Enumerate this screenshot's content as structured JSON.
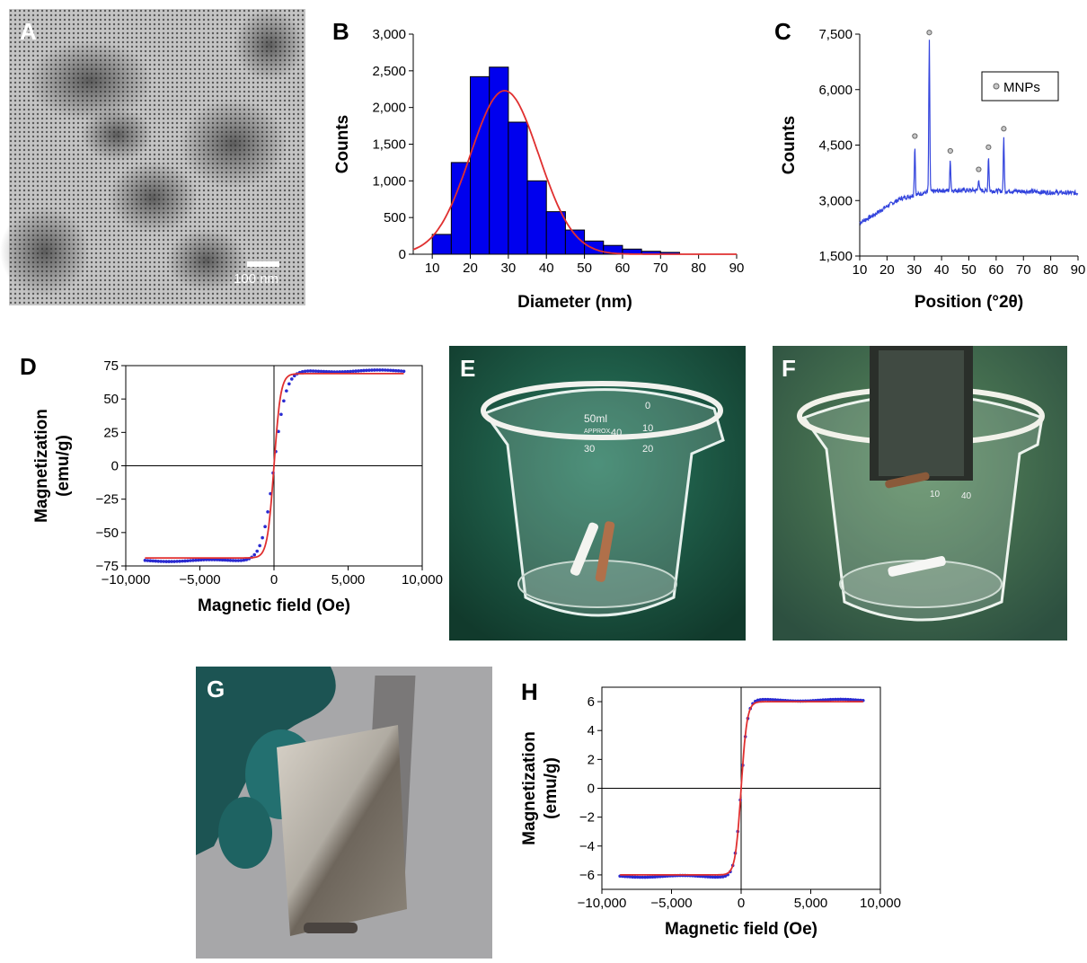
{
  "panels": {
    "a": {
      "letter": "A",
      "scalebar": "100 nm"
    },
    "b": {
      "letter": "B"
    },
    "c": {
      "letter": "C"
    },
    "d": {
      "letter": "D"
    },
    "e": {
      "letter": "E",
      "beaker_marks": [
        "50ml",
        "APPROX.",
        "0",
        "10",
        "20",
        "30",
        "40"
      ]
    },
    "f": {
      "letter": "F",
      "beaker_marks": [
        "10",
        "40"
      ]
    },
    "g": {
      "letter": "G"
    },
    "h": {
      "letter": "H"
    }
  },
  "colors": {
    "bars": "#0000ee",
    "fit": "#e03030",
    "data": "#2a2ad0",
    "xrd": "#3344dd",
    "marker": "#999999"
  },
  "chart_data": [
    {
      "id": "B",
      "type": "bar",
      "xlabel": "Diameter (nm)",
      "ylabel": "Counts",
      "xlim": [
        5,
        90
      ],
      "ylim": [
        0,
        3000
      ],
      "xticks": [
        "10",
        "20",
        "30",
        "40",
        "50",
        "60",
        "70",
        "80",
        "90"
      ],
      "yticks": [
        "0",
        "500",
        "1,000",
        "1,500",
        "2,000",
        "2,500",
        "3,000"
      ],
      "bin_edges": [
        10,
        15,
        20,
        25,
        30,
        35,
        40,
        45,
        50,
        55,
        60,
        65,
        70,
        75
      ],
      "values": [
        270,
        1250,
        2420,
        2550,
        1800,
        1000,
        580,
        330,
        180,
        120,
        70,
        40,
        25
      ],
      "fit": {
        "type": "gaussian",
        "mean": 29,
        "sd": 9,
        "peak": 2230
      }
    },
    {
      "id": "C",
      "type": "line",
      "xlabel": "Position (°2θ)",
      "ylabel": "Counts",
      "xlim": [
        10,
        90
      ],
      "ylim": [
        1500,
        7500
      ],
      "xticks": [
        "10",
        "20",
        "30",
        "40",
        "50",
        "60",
        "70",
        "80",
        "90"
      ],
      "yticks": [
        "1,500",
        "3,000",
        "4,500",
        "6,000",
        "7,500"
      ],
      "legend": {
        "label": "MNPs",
        "placement": "top-right"
      },
      "baseline": [
        [
          10,
          2400
        ],
        [
          15,
          2600
        ],
        [
          20,
          2850
        ],
        [
          25,
          3050
        ],
        [
          30,
          3150
        ],
        [
          35,
          3230
        ],
        [
          40,
          3270
        ],
        [
          50,
          3280
        ],
        [
          60,
          3260
        ],
        [
          70,
          3250
        ],
        [
          80,
          3220
        ],
        [
          90,
          3200
        ]
      ],
      "peaks": [
        {
          "x": 30.2,
          "y": 4500
        },
        {
          "x": 35.5,
          "y": 7300
        },
        {
          "x": 43.2,
          "y": 4100
        },
        {
          "x": 53.6,
          "y": 3600
        },
        {
          "x": 57.2,
          "y": 4200
        },
        {
          "x": 62.8,
          "y": 4700
        }
      ]
    },
    {
      "id": "D",
      "type": "scatter",
      "xlabel": "Magnetic field (Oe)",
      "ylabel": "Magnetization (emu/g)",
      "xlim": [
        -10000,
        10000
      ],
      "ylim": [
        -75,
        75
      ],
      "xticks": [
        "−10,000",
        "−5,000",
        "0",
        "5,000",
        "10,000"
      ],
      "yticks": [
        "−75",
        "−50",
        "−25",
        "0",
        "25",
        "50",
        "75"
      ],
      "series": [
        {
          "kind": "data",
          "ms": 71,
          "h0": 800
        },
        {
          "kind": "fit",
          "ms": 69,
          "h0": 450
        }
      ],
      "field_range": [
        -8700,
        8800
      ]
    },
    {
      "id": "H",
      "type": "scatter",
      "xlabel": "Magnetic field (Oe)",
      "ylabel": "Magnetization (emu/g)",
      "xlim": [
        -10000,
        10000
      ],
      "ylim": [
        -7,
        7
      ],
      "xticks": [
        "−10,000",
        "−5,000",
        "0",
        "5,000",
        "10,000"
      ],
      "yticks": [
        "−6",
        "−4",
        "−2",
        "0",
        "2",
        "4",
        "6"
      ],
      "series": [
        {
          "kind": "data",
          "ms": 6.1,
          "h0": 450
        },
        {
          "kind": "fit",
          "ms": 6.0,
          "h0": 420
        }
      ],
      "field_range": [
        -8700,
        8800
      ]
    }
  ]
}
